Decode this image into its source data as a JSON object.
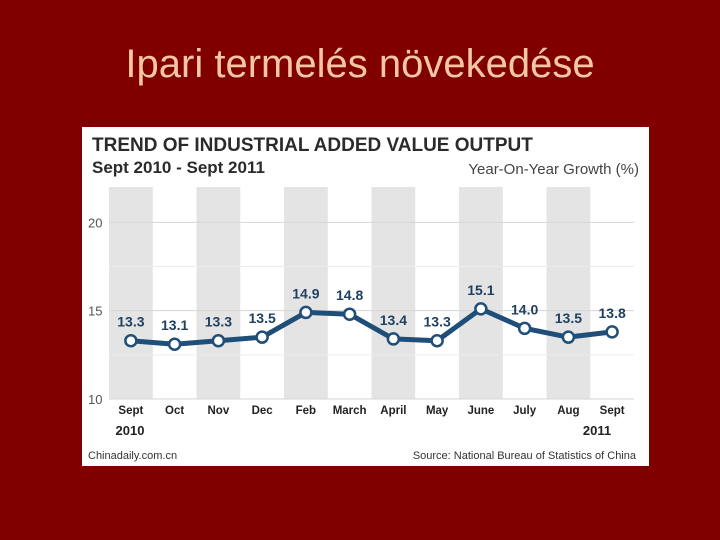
{
  "slide": {
    "title": "Ipari termelés növekedése"
  },
  "chart_data": {
    "type": "line",
    "title": "TREND OF INDUSTRIAL ADDED VALUE OUTPUT",
    "subtitle": "Sept 2010 - Sept 2011",
    "ylabel": "Year-On-Year Growth (%)",
    "xlabel": "",
    "categories": [
      "Sept",
      "Oct",
      "Nov",
      "Dec",
      "Feb",
      "March",
      "April",
      "May",
      "June",
      "July",
      "Aug",
      "Sept"
    ],
    "series": [
      {
        "name": "Year-On-Year Growth (%)",
        "values": [
          13.3,
          13.1,
          13.3,
          13.5,
          14.9,
          14.8,
          13.4,
          13.3,
          15.1,
          14.0,
          13.5,
          13.8
        ]
      }
    ],
    "data_labels": [
      "13.3",
      "13.1",
      "13.3",
      "13.5",
      "14.9",
      "14.8",
      "13.4",
      "13.3",
      "15.1",
      "14.0",
      "13.5",
      "13.8"
    ],
    "yticks": [
      10,
      15,
      20
    ],
    "ytick_labels": [
      "10",
      "15",
      "20"
    ],
    "ylim": [
      10,
      22
    ],
    "year_start": "2010",
    "year_end": "2011",
    "grid": true,
    "colors": {
      "line": "#1f4e79",
      "marker_fill": "#ffffff",
      "band": "#e4e4e4",
      "grid": "#d6d6d6"
    }
  },
  "footer": {
    "left": "Chinadaily.com.cn",
    "right": "Source: National Bureau of Statistics of China"
  }
}
